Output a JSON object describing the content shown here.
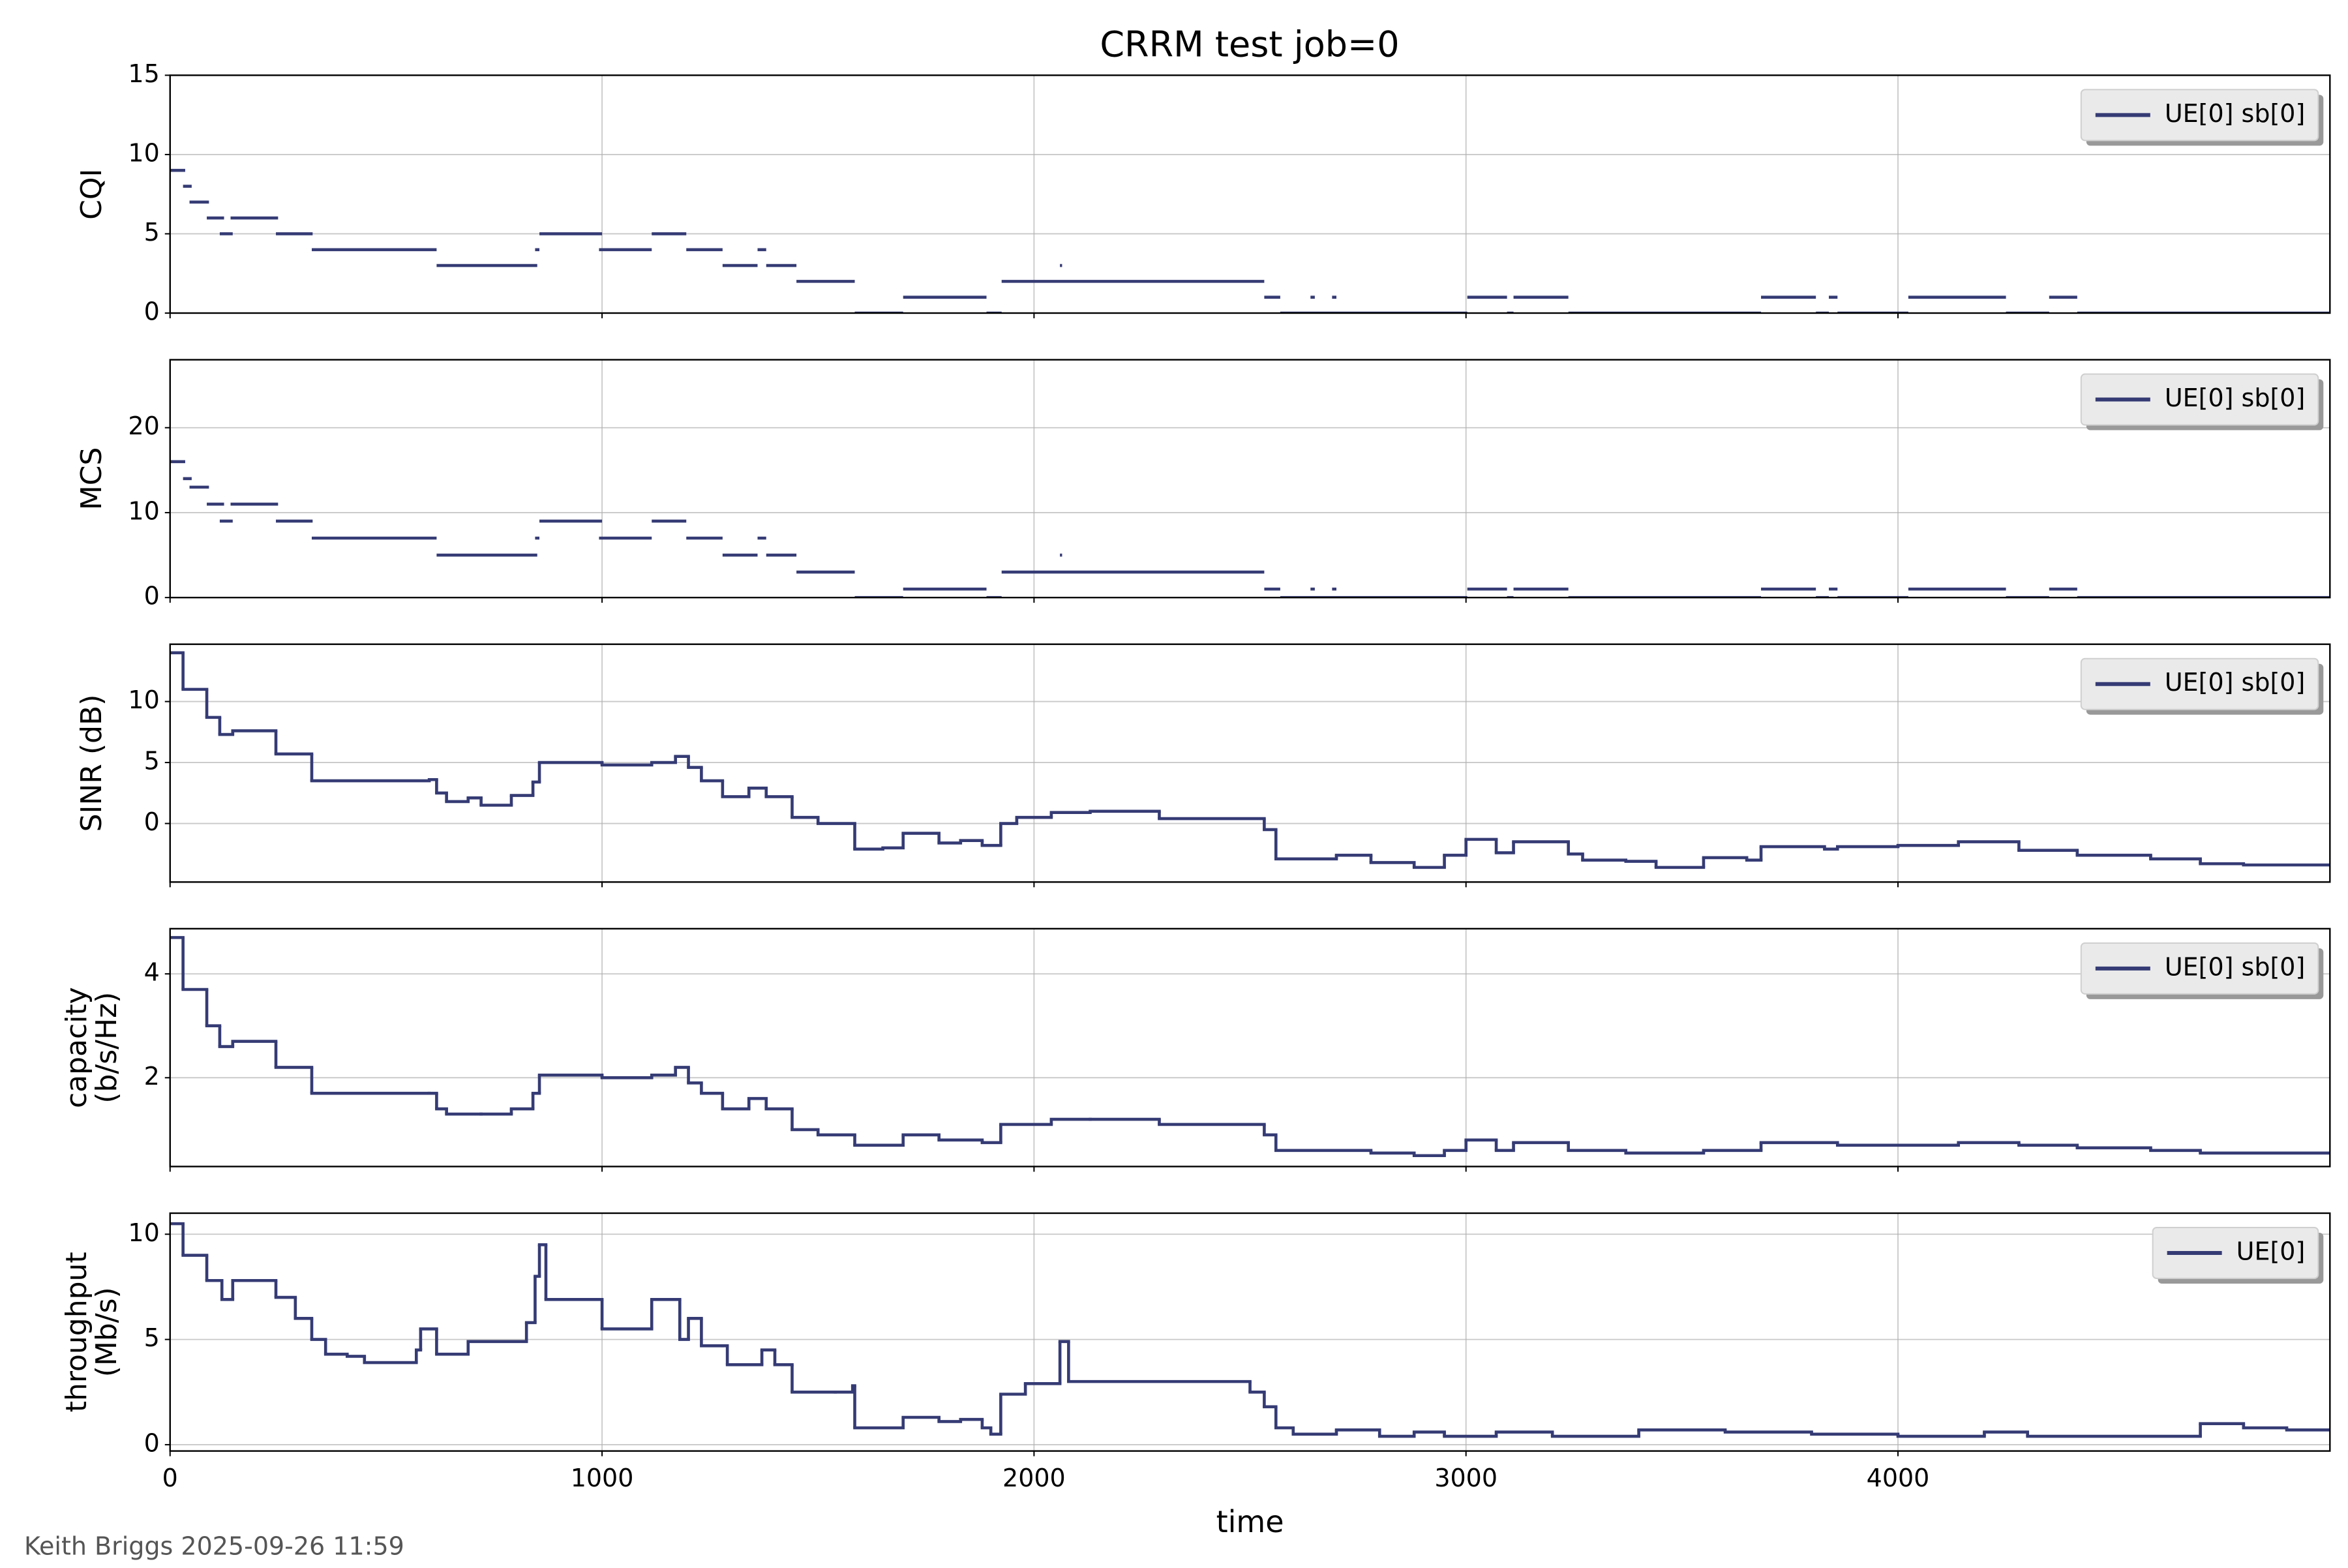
{
  "title": "CRRM test job=0",
  "footer": "Keith Briggs 2025-09-26 11:59",
  "chart_data": [
    {
      "type": "line",
      "drawstyle": "segments",
      "ylabel": [
        "CQI"
      ],
      "grid": true,
      "legend": "upper right",
      "xlim": [
        0,
        5000
      ],
      "xticks": [
        0,
        1000,
        2000,
        3000,
        4000
      ],
      "ylim": [
        0,
        15
      ],
      "yticks": [
        0,
        5,
        10,
        15
      ],
      "x": [
        0,
        35,
        null,
        30,
        50,
        null,
        45,
        90,
        null,
        85,
        125,
        null,
        115,
        145,
        null,
        140,
        250,
        null,
        245,
        330,
        null,
        328,
        617,
        null,
        617,
        850,
        null,
        845,
        855,
        null,
        855,
        1000,
        null,
        993,
        1115,
        null,
        1115,
        1195,
        null,
        1195,
        1279,
        null,
        1279,
        1360,
        null,
        1360,
        1380,
        null,
        1380,
        1450,
        null,
        1450,
        1585,
        null,
        1585,
        1697,
        null,
        1697,
        1890,
        null,
        1890,
        1925,
        null,
        1925,
        2533,
        null,
        2060,
        2065,
        null,
        2533,
        2570,
        null,
        2570,
        3003,
        null,
        2640,
        2650,
        null,
        2690,
        2700,
        null,
        3003,
        3095,
        null,
        3095,
        3110,
        null,
        3110,
        3237,
        null,
        3237,
        3683,
        null,
        3683,
        3810,
        null,
        3810,
        3840,
        null,
        3840,
        3860,
        null,
        3860,
        4024,
        null,
        4024,
        4250,
        null,
        4250,
        4350,
        null,
        4350,
        4415,
        null,
        4415,
        5000
      ],
      "series": [
        {
          "name": "UE[0] sb[0]",
          "color": "#353b74",
          "values": [
            9,
            9,
            null,
            8,
            8,
            null,
            7,
            7,
            null,
            6,
            6,
            null,
            5,
            5,
            null,
            6,
            6,
            null,
            5,
            5,
            null,
            4,
            4,
            null,
            3,
            3,
            null,
            4,
            4,
            null,
            5,
            5,
            null,
            4,
            4,
            null,
            5,
            5,
            null,
            4,
            4,
            null,
            3,
            3,
            null,
            4,
            4,
            null,
            3,
            3,
            null,
            2,
            2,
            null,
            0,
            0,
            null,
            1,
            1,
            null,
            0,
            0,
            null,
            2,
            2,
            null,
            3,
            3,
            null,
            1,
            1,
            null,
            0,
            0,
            null,
            1,
            1,
            null,
            1,
            1,
            null,
            1,
            1,
            null,
            0,
            0,
            null,
            1,
            1,
            null,
            0,
            0,
            null,
            1,
            1,
            null,
            0,
            0,
            null,
            1,
            1,
            null,
            0,
            0,
            null,
            1,
            1,
            null,
            0,
            0,
            null,
            1,
            1,
            null,
            0,
            0
          ]
        }
      ]
    },
    {
      "type": "line",
      "drawstyle": "segments",
      "ylabel": [
        "MCS"
      ],
      "grid": true,
      "legend": "upper right",
      "xlim": [
        0,
        5000
      ],
      "xticks": [
        0,
        1000,
        2000,
        3000,
        4000
      ],
      "ylim": [
        0,
        28
      ],
      "yticks": [
        0,
        10,
        20
      ],
      "x": [
        0,
        35,
        null,
        30,
        50,
        null,
        45,
        90,
        null,
        85,
        125,
        null,
        115,
        145,
        null,
        140,
        250,
        null,
        245,
        330,
        null,
        328,
        617,
        null,
        617,
        850,
        null,
        845,
        855,
        null,
        855,
        1000,
        null,
        993,
        1115,
        null,
        1115,
        1195,
        null,
        1195,
        1279,
        null,
        1279,
        1360,
        null,
        1360,
        1380,
        null,
        1380,
        1450,
        null,
        1450,
        1585,
        null,
        1585,
        1697,
        null,
        1697,
        1890,
        null,
        1890,
        1925,
        null,
        1925,
        2533,
        null,
        2060,
        2065,
        null,
        2533,
        2570,
        null,
        2570,
        3003,
        null,
        2640,
        2650,
        null,
        2690,
        2700,
        null,
        3003,
        3095,
        null,
        3095,
        3110,
        null,
        3110,
        3237,
        null,
        3237,
        3683,
        null,
        3683,
        3810,
        null,
        3810,
        3840,
        null,
        3840,
        3860,
        null,
        3860,
        4024,
        null,
        4024,
        4250,
        null,
        4250,
        4350,
        null,
        4350,
        4415,
        null,
        4415,
        5000
      ],
      "series": [
        {
          "name": "UE[0] sb[0]",
          "color": "#353b74",
          "values": [
            16,
            16,
            null,
            14,
            14,
            null,
            13,
            13,
            null,
            11,
            11,
            null,
            9,
            9,
            null,
            11,
            11,
            null,
            9,
            9,
            null,
            7,
            7,
            null,
            5,
            5,
            null,
            7,
            7,
            null,
            9,
            9,
            null,
            7,
            7,
            null,
            9,
            9,
            null,
            7,
            7,
            null,
            5,
            5,
            null,
            7,
            7,
            null,
            5,
            5,
            null,
            3,
            3,
            null,
            0,
            0,
            null,
            1,
            1,
            null,
            0,
            0,
            null,
            3,
            3,
            null,
            5,
            5,
            null,
            1,
            1,
            null,
            0,
            0,
            null,
            1,
            1,
            null,
            1,
            1,
            null,
            1,
            1,
            null,
            0,
            0,
            null,
            1,
            1,
            null,
            0,
            0,
            null,
            1,
            1,
            null,
            0,
            0,
            null,
            1,
            1,
            null,
            0,
            0,
            null,
            1,
            1,
            null,
            0,
            0,
            null,
            1,
            1,
            null,
            0,
            0
          ]
        }
      ]
    },
    {
      "type": "line",
      "drawstyle": "steps-post",
      "ylabel": [
        "SINR (dB)"
      ],
      "grid": true,
      "legend": "upper right",
      "xlim": [
        0,
        5000
      ],
      "xticks": [
        0,
        1000,
        2000,
        3000,
        4000
      ],
      "ylim": [
        -4.8,
        14.7
      ],
      "yticks": [
        0,
        5,
        10
      ],
      "x": [
        0,
        30,
        85,
        115,
        145,
        245,
        328,
        600,
        617,
        640,
        690,
        720,
        790,
        840,
        855,
        1000,
        1115,
        1170,
        1200,
        1230,
        1279,
        1340,
        1380,
        1440,
        1500,
        1585,
        1650,
        1697,
        1780,
        1830,
        1880,
        1923,
        1960,
        2040,
        2130,
        2290,
        2533,
        2560,
        2700,
        2780,
        2880,
        2950,
        3000,
        3070,
        3110,
        3237,
        3270,
        3370,
        3440,
        3550,
        3650,
        3683,
        3830,
        3860,
        4000,
        4140,
        4280,
        4415,
        4585,
        4700,
        4800
      ],
      "series": [
        {
          "name": "UE[0] sb[0]",
          "color": "#353b74",
          "values": [
            14,
            11,
            8.7,
            7.3,
            7.6,
            5.7,
            3.5,
            3.6,
            2.5,
            1.8,
            2.1,
            1.5,
            2.3,
            3.4,
            5.0,
            4.8,
            5.0,
            5.5,
            4.6,
            3.5,
            2.2,
            2.9,
            2.2,
            0.5,
            0,
            -2.1,
            -2,
            -0.8,
            -1.6,
            -1.4,
            -1.8,
            0.0,
            0.5,
            0.9,
            1.0,
            0.4,
            -0.5,
            -2.9,
            -2.6,
            -3.2,
            -3.6,
            -2.6,
            -1.3,
            -2.4,
            -1.5,
            -2.5,
            -3.0,
            -3.1,
            -3.6,
            -2.8,
            -3.0,
            -1.9,
            -2.1,
            -1.9,
            -1.8,
            -1.5,
            -2.2,
            -2.6,
            -2.9,
            -3.3,
            -3.4
          ]
        }
      ]
    },
    {
      "type": "line",
      "drawstyle": "steps-post",
      "ylabel": [
        "capacity",
        "(b/s/Hz)"
      ],
      "grid": true,
      "legend": "upper right",
      "xlim": [
        0,
        5000
      ],
      "xticks": [
        0,
        1000,
        2000,
        3000,
        4000
      ],
      "ylim": [
        0.29,
        4.87
      ],
      "yticks": [
        2,
        4
      ],
      "x": [
        0,
        30,
        85,
        115,
        145,
        245,
        328,
        600,
        617,
        640,
        720,
        790,
        840,
        855,
        1000,
        1115,
        1170,
        1200,
        1230,
        1279,
        1340,
        1380,
        1440,
        1500,
        1585,
        1697,
        1780,
        1880,
        1923,
        2040,
        2130,
        2290,
        2533,
        2560,
        2780,
        2880,
        2950,
        3000,
        3070,
        3110,
        3237,
        3370,
        3550,
        3683,
        3860,
        4140,
        4280,
        4415,
        4585,
        4700
      ],
      "series": [
        {
          "name": "UE[0] sb[0]",
          "color": "#353b74",
          "values": [
            4.7,
            3.7,
            3.0,
            2.6,
            2.7,
            2.2,
            1.7,
            1.7,
            1.4,
            1.3,
            1.3,
            1.4,
            1.7,
            2.05,
            2.0,
            2.05,
            2.2,
            1.9,
            1.7,
            1.4,
            1.6,
            1.4,
            1.0,
            0.9,
            0.7,
            0.9,
            0.8,
            0.75,
            1.1,
            1.2,
            1.2,
            1.1,
            0.9,
            0.6,
            0.55,
            0.5,
            0.6,
            0.8,
            0.6,
            0.75,
            0.6,
            0.55,
            0.6,
            0.75,
            0.7,
            0.75,
            0.7,
            0.65,
            0.6,
            0.55
          ]
        }
      ]
    },
    {
      "type": "line",
      "drawstyle": "steps-post",
      "ylabel": [
        "throughput",
        "(Mb/s)"
      ],
      "xlabel": "time",
      "grid": true,
      "legend": "upper right",
      "xlim": [
        0,
        5000
      ],
      "xticks": [
        0,
        1000,
        2000,
        3000,
        4000
      ],
      "ylim": [
        -0.3,
        11
      ],
      "yticks": [
        0,
        5,
        10
      ],
      "x": [
        0,
        30,
        85,
        120,
        145,
        245,
        290,
        328,
        360,
        410,
        450,
        570,
        580,
        617,
        690,
        825,
        845,
        855,
        870,
        1000,
        1115,
        1180,
        1200,
        1230,
        1279,
        1290,
        1370,
        1400,
        1440,
        1540,
        1580,
        1585,
        1697,
        1780,
        1830,
        1880,
        1900,
        1923,
        1980,
        2060,
        2080,
        2500,
        2533,
        2560,
        2600,
        2700,
        2800,
        2880,
        2950,
        3070,
        3200,
        3400,
        3600,
        3800,
        4000,
        4200,
        4300,
        4700,
        4800,
        4900
      ],
      "series": [
        {
          "name": "UE[0]",
          "color": "#353b74",
          "values": [
            10.5,
            9.0,
            7.8,
            6.9,
            7.8,
            7.0,
            6.0,
            5.0,
            4.3,
            4.2,
            3.9,
            4.5,
            5.5,
            4.3,
            4.9,
            5.8,
            8.0,
            9.5,
            6.9,
            5.5,
            6.9,
            5.0,
            6.0,
            4.7,
            4.7,
            3.8,
            4.5,
            3.8,
            2.5,
            2.5,
            2.8,
            0.8,
            1.3,
            1.1,
            1.2,
            0.8,
            0.5,
            2.4,
            2.9,
            4.9,
            3.0,
            2.5,
            1.8,
            0.8,
            0.5,
            0.7,
            0.4,
            0.6,
            0.4,
            0.6,
            0.4,
            0.7,
            0.6,
            0.5,
            0.4,
            0.6,
            0.4,
            1.0,
            0.8,
            0.7
          ]
        }
      ]
    }
  ]
}
